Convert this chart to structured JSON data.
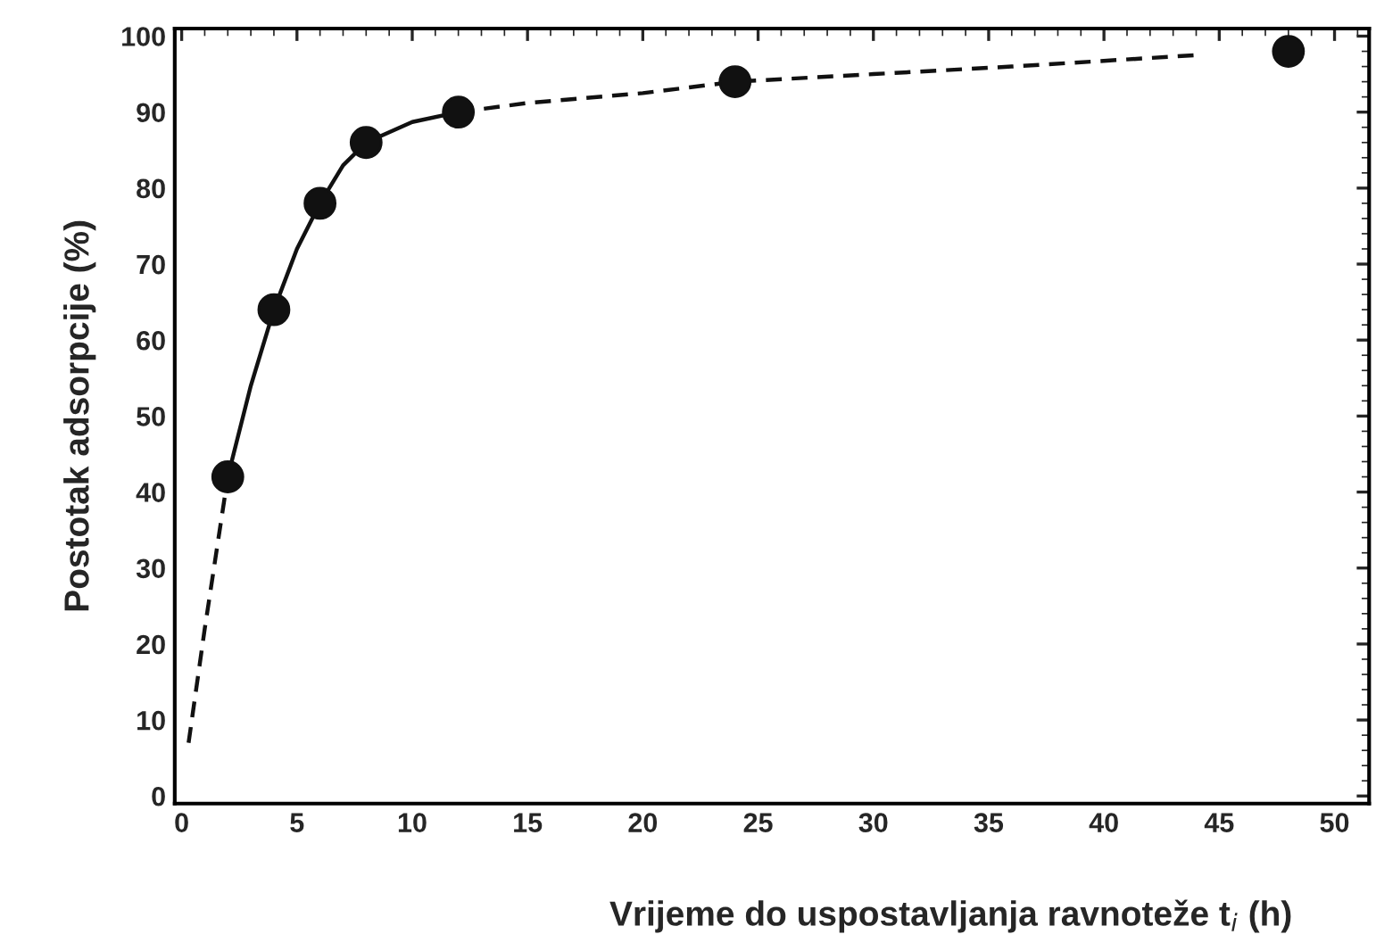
{
  "chart_data": {
    "type": "scatter",
    "xlabel": "Vrijeme do uspostavljanja ravnoteže t$_{i}$ (h)",
    "ylabel": "Postotak adsorpcije (%)",
    "xlim": [
      -0.3,
      51.5
    ],
    "ylim": [
      -1,
      101
    ],
    "xticks": [
      0,
      5,
      10,
      15,
      20,
      25,
      30,
      35,
      40,
      45,
      50
    ],
    "yticks": [
      0,
      10,
      20,
      30,
      40,
      50,
      60,
      70,
      80,
      90,
      100
    ],
    "grid": false,
    "legend": false,
    "marker": "circle",
    "series": [
      {
        "color": "#111111",
        "x": [
          2,
          4,
          6,
          8,
          12,
          24,
          48
        ],
        "values": [
          42,
          64,
          78,
          86,
          90,
          94,
          98
        ]
      },
      {
        "type": "line",
        "color": "#111111",
        "marker": "none",
        "line_style": "dashed",
        "x": [
          0.3,
          1,
          2
        ],
        "values": [
          7,
          22,
          42
        ]
      },
      {
        "type": "line",
        "color": "#111111",
        "marker": "none",
        "line_style": "solid",
        "x": [
          2,
          3,
          4,
          5,
          6,
          7,
          8,
          10,
          12
        ],
        "values": [
          42,
          54,
          64,
          72,
          78,
          83,
          86,
          88.7,
          90
        ]
      },
      {
        "type": "line",
        "color": "#111111",
        "marker": "none",
        "line_style": "dashed",
        "x": [
          12,
          15,
          20,
          24,
          30,
          36,
          44
        ],
        "values": [
          90,
          91.2,
          92.5,
          94,
          95,
          96,
          97.5
        ]
      }
    ]
  }
}
